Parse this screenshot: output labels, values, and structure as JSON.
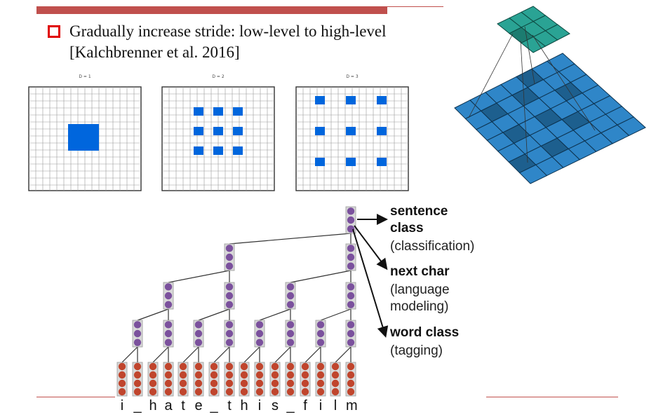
{
  "slide": {
    "bullet_text": "Gradually increase stride: low-level to high-level",
    "bullet_ref": "[Kalchbrenner et al. 2016]"
  },
  "dilation_panels": [
    {
      "label": "D = 1",
      "dilation": 1
    },
    {
      "label": "D = 2",
      "dilation": 2
    },
    {
      "label": "D = 3",
      "dilation": 3
    }
  ],
  "tree": {
    "chars": [
      "i",
      "_",
      "h",
      "a",
      "t",
      "e",
      "_",
      "t",
      "h",
      "i",
      "s",
      "_",
      "f",
      "i",
      "l",
      "m"
    ],
    "outputs": [
      {
        "title": "sentence class",
        "title_line1": "sentence",
        "title_line2": "class",
        "sub": "(classification)"
      },
      {
        "title": "next char",
        "sub_line1": "(language",
        "sub_line2": "modeling)"
      },
      {
        "title": "word class",
        "sub": "(tagging)"
      }
    ]
  },
  "colors": {
    "accent_bar": "#c0504d",
    "bullet": "#e00000",
    "kernel_blue": "#0066dd",
    "node_purple": "#7b519d",
    "node_red": "#c0452d",
    "conv_top": "#2aa394",
    "conv_base": "#2f86c8"
  }
}
